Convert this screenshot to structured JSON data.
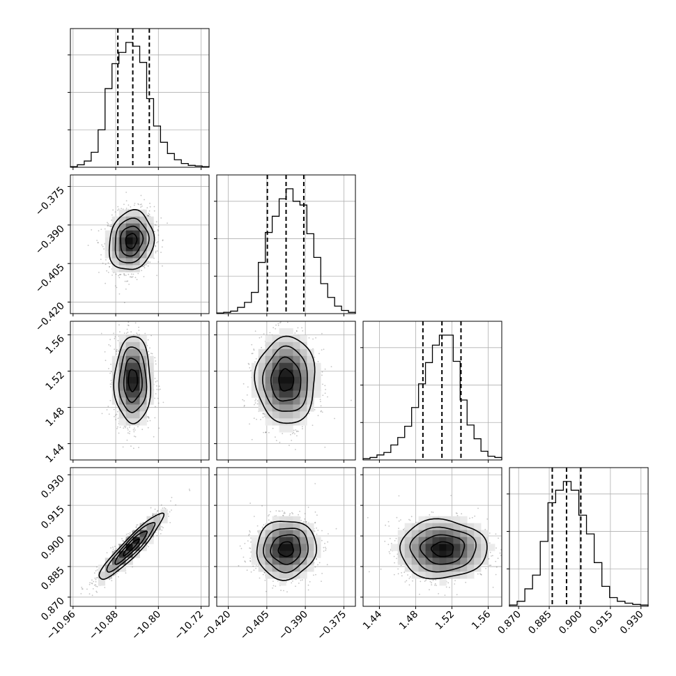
{
  "chart_data": {
    "type": "corner",
    "grid": true,
    "parameters": [
      {
        "ticks": [
          "−10.96",
          "−10.88",
          "−10.80",
          "−10.72"
        ],
        "tick_values": [
          -10.96,
          -10.88,
          -10.8,
          -10.72
        ],
        "range": [
          -10.965,
          -10.705
        ],
        "median": -10.848,
        "quantiles": [
          -10.876,
          -10.817
        ],
        "histogram": [
          0.005,
          0.02,
          0.05,
          0.12,
          0.3,
          0.63,
          0.83,
          0.92,
          1.0,
          0.97,
          0.84,
          0.55,
          0.33,
          0.2,
          0.11,
          0.06,
          0.03,
          0.015,
          0.01,
          0.005
        ]
      },
      {
        "ticks": [
          "−0.420",
          "−0.405",
          "−0.390",
          "−0.375"
        ],
        "tick_values": [
          -0.42,
          -0.405,
          -0.39,
          -0.375
        ],
        "range": [
          -0.4245,
          -0.3705
        ],
        "median": -0.3975,
        "quantiles": [
          -0.4048,
          -0.3906
        ],
        "histogram": [
          0.005,
          0.01,
          0.02,
          0.05,
          0.09,
          0.17,
          0.41,
          0.65,
          0.78,
          0.92,
          1.0,
          0.9,
          0.87,
          0.64,
          0.45,
          0.24,
          0.13,
          0.06,
          0.025,
          0.01
        ]
      },
      {
        "ticks": [
          "1.44",
          "1.48",
          "1.52",
          "1.56"
        ],
        "tick_values": [
          1.44,
          1.48,
          1.52,
          1.56
        ],
        "range": [
          1.422,
          1.575
        ],
        "median": 1.509,
        "quantiles": [
          1.488,
          1.53
        ],
        "histogram": [
          0.01,
          0.02,
          0.04,
          0.06,
          0.12,
          0.18,
          0.27,
          0.42,
          0.61,
          0.78,
          0.92,
          1.0,
          1.0,
          0.79,
          0.48,
          0.28,
          0.17,
          0.07,
          0.03,
          0.02
        ]
      },
      {
        "ticks": [
          "0.870",
          "0.885",
          "0.900",
          "0.915",
          "0.930"
        ],
        "tick_values": [
          0.87,
          0.885,
          0.9,
          0.915,
          0.93
        ],
        "range": [
          0.8655,
          0.9335
        ],
        "median": 0.8935,
        "quantiles": [
          0.8865,
          0.9005
        ],
        "histogram": [
          0.01,
          0.04,
          0.14,
          0.25,
          0.52,
          0.83,
          0.93,
          1.0,
          0.93,
          0.73,
          0.58,
          0.35,
          0.16,
          0.07,
          0.04,
          0.025,
          0.015,
          0.01
        ]
      }
    ],
    "joint": [
      {
        "xi": 0,
        "yi": 1,
        "mean": [
          -10.851,
          -0.3962
        ],
        "sd": [
          0.021,
          0.0058
        ],
        "rho": 0.12
      },
      {
        "xi": 0,
        "yi": 2,
        "mean": [
          -10.848,
          1.51
        ],
        "sd": [
          0.017,
          0.024
        ],
        "rho": 0.0
      },
      {
        "xi": 1,
        "yi": 2,
        "mean": [
          -0.3975,
          1.51
        ],
        "sd": [
          0.0058,
          0.024
        ],
        "rho": 0.0
      },
      {
        "xi": 0,
        "yi": 3,
        "mean": [
          -10.851,
          0.8945
        ],
        "sd": [
          0.03,
          0.0081
        ],
        "rho": 0.93
      },
      {
        "xi": 1,
        "yi": 3,
        "mean": [
          -0.3975,
          0.8935
        ],
        "sd": [
          0.0058,
          0.0072
        ],
        "rho": 0.05
      },
      {
        "xi": 2,
        "yi": 3,
        "mean": [
          1.51,
          0.8935
        ],
        "sd": [
          0.024,
          0.0072
        ],
        "rho": 0.0
      }
    ]
  }
}
